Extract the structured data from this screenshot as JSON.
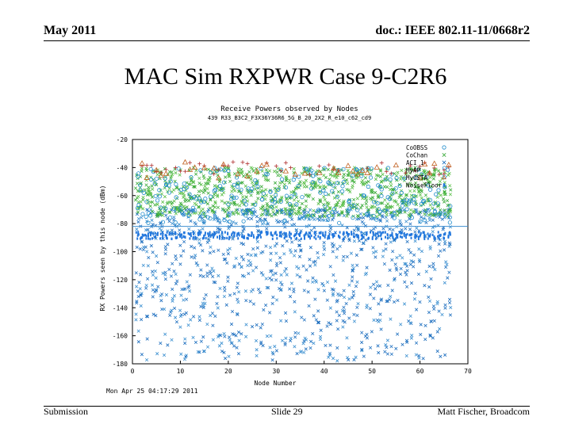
{
  "header": {
    "date": "May 2011",
    "doc": "doc.: IEEE 802.11-11/0668r2"
  },
  "slide": {
    "title": "MAC Sim RXPWR Case 9-C2R6"
  },
  "footer": {
    "left": "Submission",
    "center": "Slide 29",
    "right": "Matt Fischer, Broadcom"
  },
  "chart_data": {
    "type": "scatter",
    "title": "Receive Powers observed by Nodes",
    "subtitle": "439 R33_B3C2_F3X36Y36R6_5G_B_20_2X2_R_e10_c62_cd9",
    "xlabel": "Node Number",
    "ylabel": "RX Powers seen by this node (dBm)",
    "timestamp": "Mon Apr 25 04:17:29 2011",
    "xlim": [
      0,
      70
    ],
    "ylim": [
      -180,
      -20
    ],
    "xticks": [
      0,
      10,
      20,
      30,
      40,
      50,
      60,
      70
    ],
    "yticks": [
      -20,
      -40,
      -60,
      -80,
      -100,
      -120,
      -140,
      -160,
      -180
    ],
    "grid": false,
    "legend_position": "top-right",
    "series": [
      {
        "name": "CoOBSS",
        "color": "#1f8ccc",
        "marker": "circle",
        "y_range": [
          -100,
          -35
        ],
        "density": 4,
        "x_points": []
      },
      {
        "name": "CoChan",
        "color": "#3aaa3a",
        "marker": "x",
        "y_range": [
          -75,
          -40
        ],
        "density": 14
      },
      {
        "name": "ACI_1",
        "color": "#1e6fbf",
        "marker": "x",
        "y_range": [
          -178,
          -70
        ],
        "density": 16
      },
      {
        "name": "MyAP",
        "color": "#b03030",
        "marker": "plus",
        "y_range": [
          -45,
          -36
        ],
        "density": 1
      },
      {
        "name": "MyOSTA",
        "color": "#c06020",
        "marker": "triangle",
        "y_range": [
          -48,
          -36
        ],
        "density": 1
      },
      {
        "name": "NoiseFloor",
        "color": "#2277dd",
        "marker": "box",
        "y_range": [
          -91,
          -86
        ],
        "density": 6
      }
    ],
    "reference_lines": [
      {
        "y": -82,
        "color": "#3f8fd0"
      }
    ]
  }
}
